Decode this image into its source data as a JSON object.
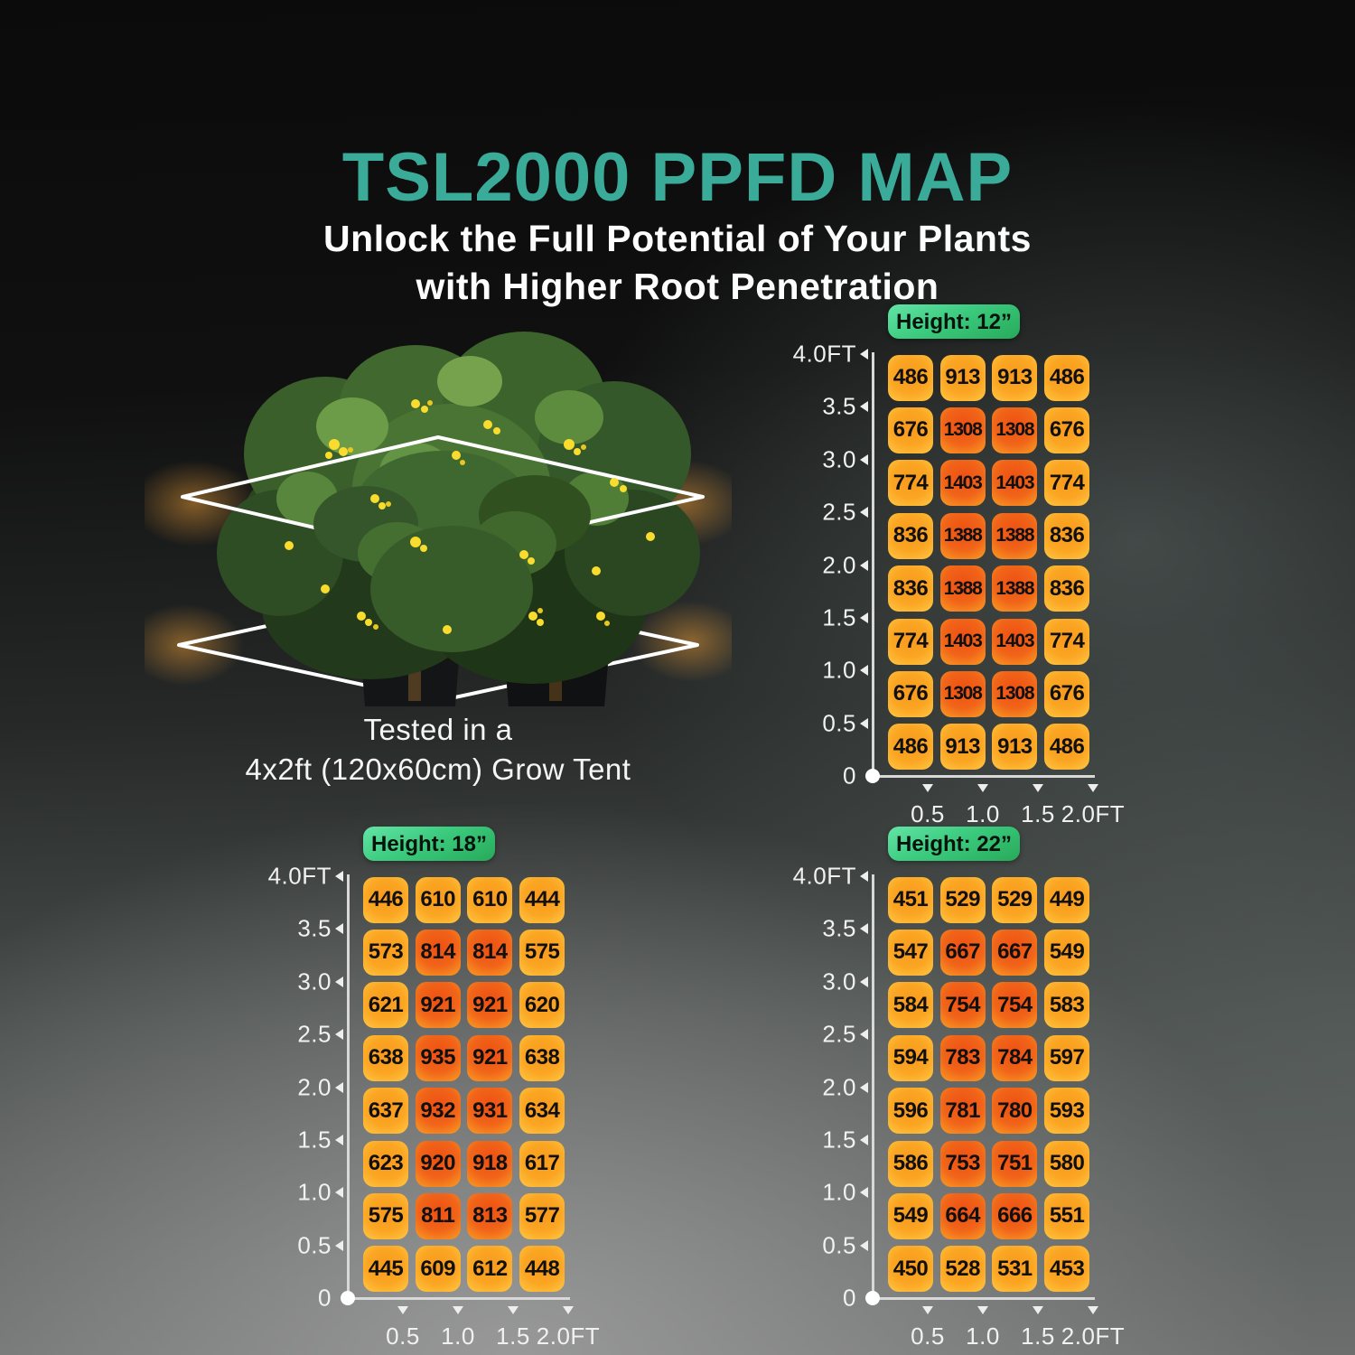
{
  "page": {
    "title": "TSL2000 PPFD MAP",
    "subtitle": [
      "Unlock the Full Potential of Your Plants",
      "with Higher Root Penetration"
    ],
    "caption": [
      "Tested in a",
      "4x2ft (120x60cm) Grow Tent"
    ]
  },
  "colors": {
    "title_teal": "#3aab99",
    "badge_green_light": "#63e4a6",
    "badge_green_dark": "#27aa59",
    "cell_yellow_edge": "#ffc642",
    "cell_yellow_core": "#f8991c",
    "cell_hot_core": "#ee4f12",
    "cell_hot_edge": "#f99c24",
    "axis": "#d8d8d8",
    "cell_text": "#101010"
  },
  "chart_data": [
    {
      "type": "heatmap",
      "title": "Height: 12”",
      "x_ticks": [
        "0.5",
        "1.0",
        "1.5",
        "2.0FT"
      ],
      "y_ticks": [
        "4.0FT",
        "3.5",
        "3.0",
        "2.5",
        "2.0",
        "1.5",
        "1.0",
        "0.5",
        "0"
      ],
      "x_range_ft": [
        0,
        2.0
      ],
      "y_range_ft": [
        0,
        4.0
      ],
      "values": [
        [
          486,
          913,
          913,
          486
        ],
        [
          676,
          1308,
          1308,
          676
        ],
        [
          774,
          1403,
          1403,
          774
        ],
        [
          836,
          1388,
          1388,
          836
        ],
        [
          836,
          1388,
          1388,
          836
        ],
        [
          774,
          1403,
          1403,
          774
        ],
        [
          676,
          1308,
          1308,
          676
        ],
        [
          486,
          913,
          913,
          486
        ]
      ]
    },
    {
      "type": "heatmap",
      "title": "Height: 18”",
      "x_ticks": [
        "0.5",
        "1.0",
        "1.5",
        "2.0FT"
      ],
      "y_ticks": [
        "4.0FT",
        "3.5",
        "3.0",
        "2.5",
        "2.0",
        "1.5",
        "1.0",
        "0.5",
        "0"
      ],
      "x_range_ft": [
        0,
        2.0
      ],
      "y_range_ft": [
        0,
        4.0
      ],
      "values": [
        [
          446,
          610,
          610,
          444
        ],
        [
          573,
          814,
          814,
          575
        ],
        [
          621,
          921,
          921,
          620
        ],
        [
          638,
          935,
          921,
          638
        ],
        [
          637,
          932,
          931,
          634
        ],
        [
          623,
          920,
          918,
          617
        ],
        [
          575,
          811,
          813,
          577
        ],
        [
          445,
          609,
          612,
          448
        ]
      ]
    },
    {
      "type": "heatmap",
      "title": "Height: 22”",
      "x_ticks": [
        "0.5",
        "1.0",
        "1.5",
        "2.0FT"
      ],
      "y_ticks": [
        "4.0FT",
        "3.5",
        "3.0",
        "2.5",
        "2.0",
        "1.5",
        "1.0",
        "0.5",
        "0"
      ],
      "x_range_ft": [
        0,
        2.0
      ],
      "y_range_ft": [
        0,
        4.0
      ],
      "values": [
        [
          451,
          529,
          529,
          449
        ],
        [
          547,
          667,
          667,
          549
        ],
        [
          584,
          754,
          754,
          583
        ],
        [
          594,
          783,
          784,
          597
        ],
        [
          596,
          781,
          780,
          593
        ],
        [
          586,
          753,
          751,
          580
        ],
        [
          549,
          664,
          666,
          551
        ],
        [
          450,
          528,
          531,
          453
        ]
      ]
    }
  ]
}
